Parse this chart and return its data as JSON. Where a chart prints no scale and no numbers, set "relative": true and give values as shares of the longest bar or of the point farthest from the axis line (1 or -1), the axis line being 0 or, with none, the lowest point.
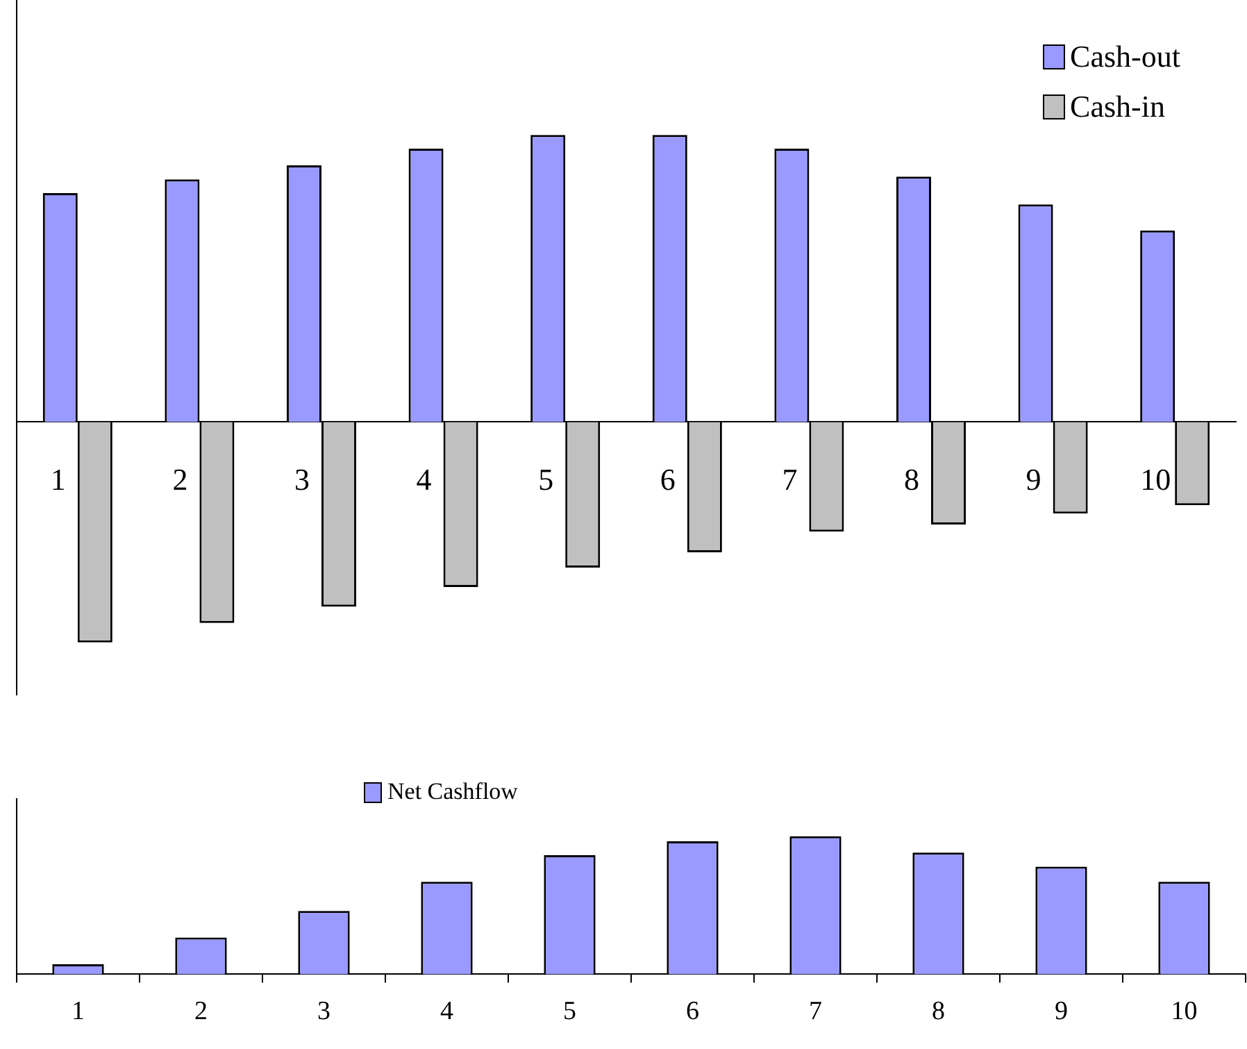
{
  "chart_data": [
    {
      "type": "bar",
      "relative": true,
      "categories": [
        "1",
        "2",
        "3",
        "4",
        "5",
        "6",
        "7",
        "8",
        "9",
        "10"
      ],
      "legend": "top right",
      "series": [
        {
          "name": "Cash-out",
          "color": "#9999ff",
          "values": [
            0.797,
            0.845,
            0.894,
            0.952,
            1,
            1,
            0.952,
            0.855,
            0.758,
            0.667
          ]
        },
        {
          "name": "Cash-in",
          "color": "#c0c0c0",
          "values": [
            -0.768,
            -0.7,
            -0.643,
            -0.575,
            -0.507,
            -0.454,
            -0.382,
            -0.357,
            -0.319,
            -0.29
          ]
        }
      ]
    },
    {
      "type": "bar",
      "relative": true,
      "categories": [
        "1",
        "2",
        "3",
        "4",
        "5",
        "6",
        "7",
        "8",
        "9",
        "10"
      ],
      "legend": "top",
      "series": [
        {
          "name": "Net Cashflow",
          "color": "#9999ff",
          "values": [
            0.073,
            0.266,
            0.459,
            0.67,
            0.862,
            0.963,
            1,
            0.881,
            0.78,
            0.67
          ]
        }
      ]
    }
  ]
}
